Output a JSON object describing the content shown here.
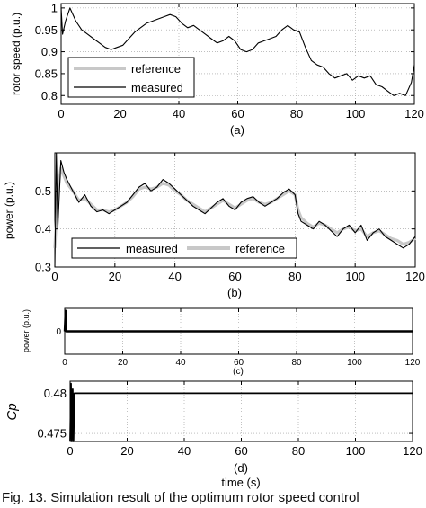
{
  "caption": "Fig. 13. Simulation result of the optimum rotor speed control",
  "chart_data": [
    {
      "type": "line",
      "panel_label": "(a)",
      "xlabel": "",
      "ylabel": "rotor speed (p.u.)",
      "xlim": [
        0,
        120
      ],
      "ylim": [
        0.78,
        1.01
      ],
      "xticks": [
        0,
        20,
        40,
        60,
        80,
        100,
        120
      ],
      "yticks": [
        0.8,
        0.85,
        0.9,
        0.95,
        1
      ],
      "ytick_labels": [
        "0.8",
        "0.85",
        "0.9",
        "0.95",
        "1"
      ],
      "grid": true,
      "legend_position": "bottom-left",
      "series": [
        {
          "name": "reference",
          "color": "#c8c8c8",
          "x": [],
          "y": []
        },
        {
          "name": "measured",
          "color": "#000000",
          "x": [
            0,
            0.5,
            1.5,
            3,
            5,
            7,
            9,
            11,
            13,
            15,
            17,
            19,
            21,
            23,
            25,
            27,
            29,
            31,
            33,
            35,
            37,
            39,
            41,
            43,
            45,
            47,
            49,
            51,
            53,
            55,
            57,
            59,
            61,
            63,
            65,
            67,
            69,
            71,
            73,
            75,
            77,
            79,
            81,
            83,
            85,
            87,
            89,
            91,
            93,
            95,
            97,
            99,
            101,
            103,
            105,
            107,
            109,
            111,
            113,
            115,
            117,
            119,
            120
          ],
          "y": [
            1.0,
            0.94,
            0.97,
            1.0,
            0.97,
            0.95,
            0.94,
            0.93,
            0.92,
            0.91,
            0.905,
            0.91,
            0.915,
            0.93,
            0.945,
            0.955,
            0.965,
            0.97,
            0.975,
            0.98,
            0.985,
            0.98,
            0.965,
            0.955,
            0.96,
            0.95,
            0.94,
            0.93,
            0.92,
            0.925,
            0.935,
            0.925,
            0.905,
            0.9,
            0.905,
            0.92,
            0.925,
            0.93,
            0.935,
            0.95,
            0.96,
            0.95,
            0.945,
            0.91,
            0.88,
            0.87,
            0.865,
            0.85,
            0.84,
            0.845,
            0.85,
            0.835,
            0.845,
            0.84,
            0.845,
            0.825,
            0.82,
            0.81,
            0.8,
            0.805,
            0.8,
            0.83,
            0.87
          ]
        }
      ]
    },
    {
      "type": "line",
      "panel_label": "(b)",
      "xlabel": "",
      "ylabel": "power (p.u.)",
      "xlim": [
        0,
        120
      ],
      "ylim": [
        0.3,
        0.6
      ],
      "xticks": [
        0,
        20,
        40,
        60,
        80,
        100,
        120
      ],
      "yticks": [
        0.3,
        0.4,
        0.5
      ],
      "ytick_labels": [
        "0.3",
        "0.4",
        "0.5"
      ],
      "grid": true,
      "legend_position": "bottom",
      "series": [
        {
          "name": "measured",
          "color": "#000000",
          "x": [
            0,
            0.5,
            1,
            2,
            3,
            4,
            6,
            8,
            10,
            12,
            14,
            16,
            18,
            20,
            22,
            24,
            26,
            28,
            30,
            32,
            34,
            36,
            38,
            40,
            42,
            44,
            46,
            48,
            50,
            52,
            54,
            56,
            58,
            60,
            62,
            64,
            66,
            68,
            70,
            72,
            74,
            76,
            78,
            80,
            81,
            82,
            84,
            86,
            88,
            90,
            92,
            94,
            96,
            98,
            100,
            102,
            104,
            106,
            108,
            110,
            112,
            114,
            116,
            118,
            120
          ],
          "y": [
            0.3,
            0.6,
            0.4,
            0.58,
            0.55,
            0.53,
            0.5,
            0.47,
            0.49,
            0.46,
            0.445,
            0.45,
            0.44,
            0.45,
            0.46,
            0.47,
            0.49,
            0.51,
            0.52,
            0.5,
            0.51,
            0.53,
            0.52,
            0.505,
            0.49,
            0.475,
            0.46,
            0.45,
            0.44,
            0.455,
            0.47,
            0.48,
            0.46,
            0.45,
            0.47,
            0.48,
            0.485,
            0.47,
            0.46,
            0.47,
            0.48,
            0.495,
            0.505,
            0.49,
            0.44,
            0.42,
            0.41,
            0.4,
            0.42,
            0.41,
            0.395,
            0.38,
            0.4,
            0.41,
            0.39,
            0.41,
            0.37,
            0.39,
            0.4,
            0.38,
            0.37,
            0.36,
            0.35,
            0.36,
            0.38
          ]
        },
        {
          "name": "reference",
          "color": "#c8c8c8",
          "x": [
            0,
            1,
            2,
            3,
            4,
            6,
            8,
            10,
            12,
            14,
            16,
            18,
            20,
            22,
            24,
            26,
            28,
            30,
            32,
            34,
            36,
            38,
            40,
            42,
            44,
            46,
            48,
            50,
            52,
            54,
            56,
            58,
            60,
            62,
            64,
            66,
            68,
            70,
            72,
            74,
            76,
            78,
            80,
            81,
            82,
            84,
            86,
            88,
            90,
            92,
            94,
            96,
            98,
            100,
            102,
            104,
            106,
            108,
            110,
            112,
            114,
            116,
            118,
            120
          ],
          "y": [
            0.35,
            0.5,
            0.56,
            0.54,
            0.52,
            0.5,
            0.475,
            0.48,
            0.465,
            0.45,
            0.45,
            0.445,
            0.45,
            0.46,
            0.47,
            0.485,
            0.505,
            0.51,
            0.505,
            0.51,
            0.52,
            0.515,
            0.5,
            0.49,
            0.475,
            0.465,
            0.455,
            0.445,
            0.455,
            0.465,
            0.475,
            0.465,
            0.455,
            0.465,
            0.475,
            0.48,
            0.47,
            0.465,
            0.47,
            0.48,
            0.49,
            0.5,
            0.49,
            0.45,
            0.43,
            0.415,
            0.405,
            0.415,
            0.41,
            0.4,
            0.39,
            0.4,
            0.405,
            0.395,
            0.4,
            0.38,
            0.39,
            0.395,
            0.385,
            0.375,
            0.37,
            0.36,
            0.365,
            0.375
          ]
        }
      ]
    },
    {
      "type": "line",
      "panel_label": "(c)",
      "xlabel": "",
      "ylabel": "power (p.u.)",
      "xlim": [
        0,
        120
      ],
      "ylim": [
        -1,
        1
      ],
      "xticks": [
        0,
        20,
        40,
        60,
        80,
        100,
        120
      ],
      "yticks": [
        0
      ],
      "ytick_labels": [
        "0"
      ],
      "grid": true,
      "series": [
        {
          "name": "",
          "color": "#000000",
          "x": [
            0,
            0.3,
            0.5,
            1,
            120
          ],
          "y": [
            0,
            0.9,
            0,
            0,
            0
          ]
        }
      ]
    },
    {
      "type": "line",
      "panel_label": "(d)",
      "xlabel": "time (s)",
      "ylabel": "Cp",
      "xlim": [
        0,
        120
      ],
      "ylim": [
        0.474,
        0.4815
      ],
      "xticks": [
        0,
        20,
        40,
        60,
        80,
        100,
        120
      ],
      "yticks": [
        0.475,
        0.48
      ],
      "ytick_labels": [
        "0.475",
        "0.48"
      ],
      "grid": true,
      "series": [
        {
          "name": "",
          "color": "#000000",
          "x": [
            0,
            0.3,
            0.6,
            0.9,
            1.2,
            1.5,
            120
          ],
          "y": [
            0.474,
            0.4812,
            0.474,
            0.4805,
            0.474,
            0.48,
            0.48
          ]
        }
      ]
    }
  ]
}
